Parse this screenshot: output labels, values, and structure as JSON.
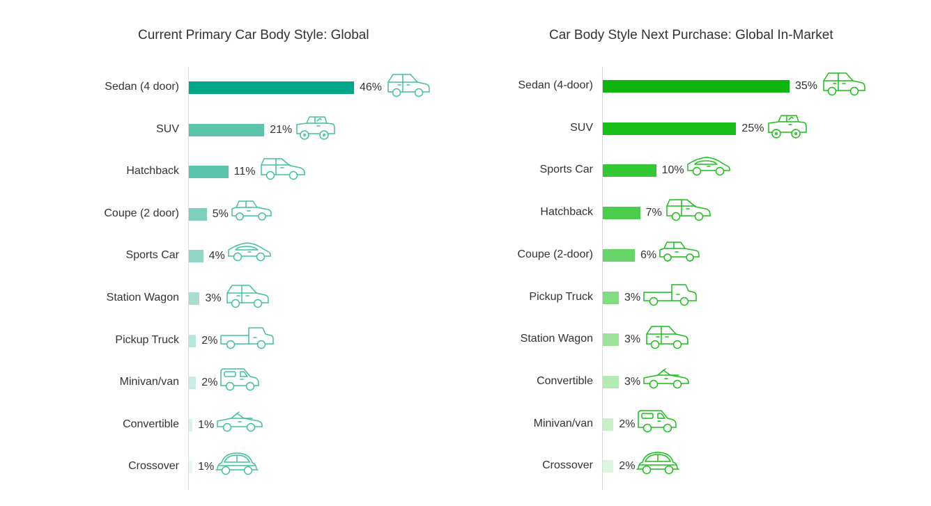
{
  "chart_data": [
    {
      "type": "bar",
      "orientation": "horizontal",
      "title": "Current Primary Car Body Style: Global",
      "categories": [
        "Sedan (4 door)",
        "SUV",
        "Hatchback",
        "Coupe (2 door)",
        "Sports Car",
        "Station Wagon",
        "Pickup Truck",
        "Minivan/van",
        "Convertible",
        "Crossover"
      ],
      "values": [
        46,
        21,
        11,
        5,
        4,
        3,
        2,
        2,
        1,
        1
      ],
      "value_labels": [
        "46%",
        "21%",
        "11%",
        "5%",
        "4%",
        "3%",
        "2%",
        "2%",
        "1%",
        "1%"
      ],
      "icons": [
        "station-wagon-icon",
        "suv-icon",
        "hatchback-icon",
        "coupe-icon",
        "sports-car-icon",
        "station-wagon-icon",
        "pickup-truck-icon",
        "minivan-icon",
        "convertible-icon",
        "crossover-icon"
      ],
      "colors": [
        "#00a887",
        "#5cc4ad",
        "#5cc4ad",
        "#7dd0bd",
        "#8fd6c6",
        "#a6dfd2",
        "#b8e6dc",
        "#c9ece4",
        "#d9f2ec",
        "#e8f7f3"
      ],
      "icon_color": "#3ec09f",
      "xlim": [
        0,
        46
      ],
      "grid": false,
      "legend": "none"
    },
    {
      "type": "bar",
      "orientation": "horizontal",
      "title": "Car Body Style Next Purchase: Global In-Market",
      "categories": [
        "Sedan (4-door)",
        "SUV",
        "Sports Car",
        "Hatchback",
        "Coupe (2-door)",
        "Pickup Truck",
        "Station Wagon",
        "Convertible",
        "Minivan/van",
        "Crossover"
      ],
      "values": [
        35,
        25,
        10,
        7,
        6,
        3,
        3,
        3,
        2,
        2
      ],
      "value_labels": [
        "35%",
        "25%",
        "10%",
        "7%",
        "6%",
        "3%",
        "3%",
        "3%",
        "2%",
        "2%"
      ],
      "icons": [
        "station-wagon-icon",
        "suv-icon",
        "sports-car-icon",
        "hatchback-icon",
        "coupe-icon",
        "pickup-truck-icon",
        "station-wagon-icon",
        "convertible-icon",
        "minivan-icon",
        "crossover-icon"
      ],
      "colors": [
        "#0fb50f",
        "#19bf19",
        "#33c733",
        "#4bcd4b",
        "#66d466",
        "#82dc82",
        "#9be39b",
        "#b2eab2",
        "#c8f0c8",
        "#ddf6dd"
      ],
      "icon_color": "#19bf19",
      "xlim": [
        0,
        35
      ],
      "grid": false,
      "legend": "none"
    }
  ]
}
